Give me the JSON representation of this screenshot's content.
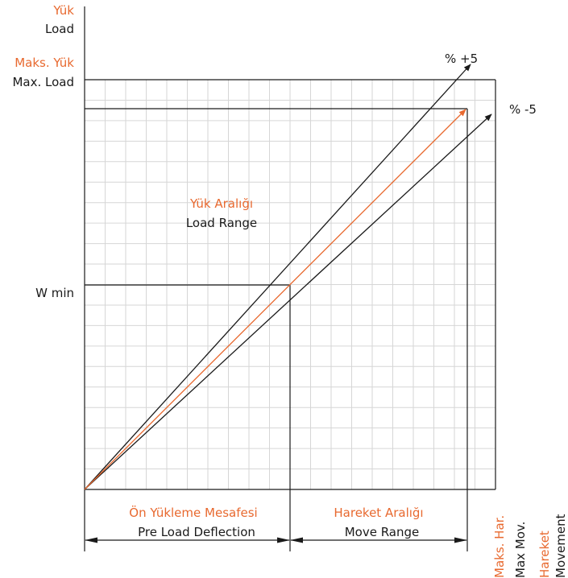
{
  "colors": {
    "accent": "#e8692f",
    "ink": "#1a1a1a",
    "grid": "#d6d6d6"
  },
  "y_axis": {
    "title_tr": "Yük",
    "title_en": "Load",
    "max_tr": "Maks. Yük",
    "max_en": "Max. Load",
    "min_label": "W min"
  },
  "arrows": {
    "upper_label": "% +5",
    "lower_label": "% -5"
  },
  "center": {
    "range_tr": "Yük Aralığı",
    "range_en": "Load Range"
  },
  "bottom": {
    "preload_tr": "Ön Yükleme Mesafesi",
    "preload_en": "Pre Load Deflection",
    "move_tr": "Hareket Aralığı",
    "move_en": "Move Range",
    "maxmov_tr": "Maks. Har.",
    "maxmov_en": "Max Mov.",
    "movement_tr": "Hareket",
    "movement_en": "Movement"
  }
}
